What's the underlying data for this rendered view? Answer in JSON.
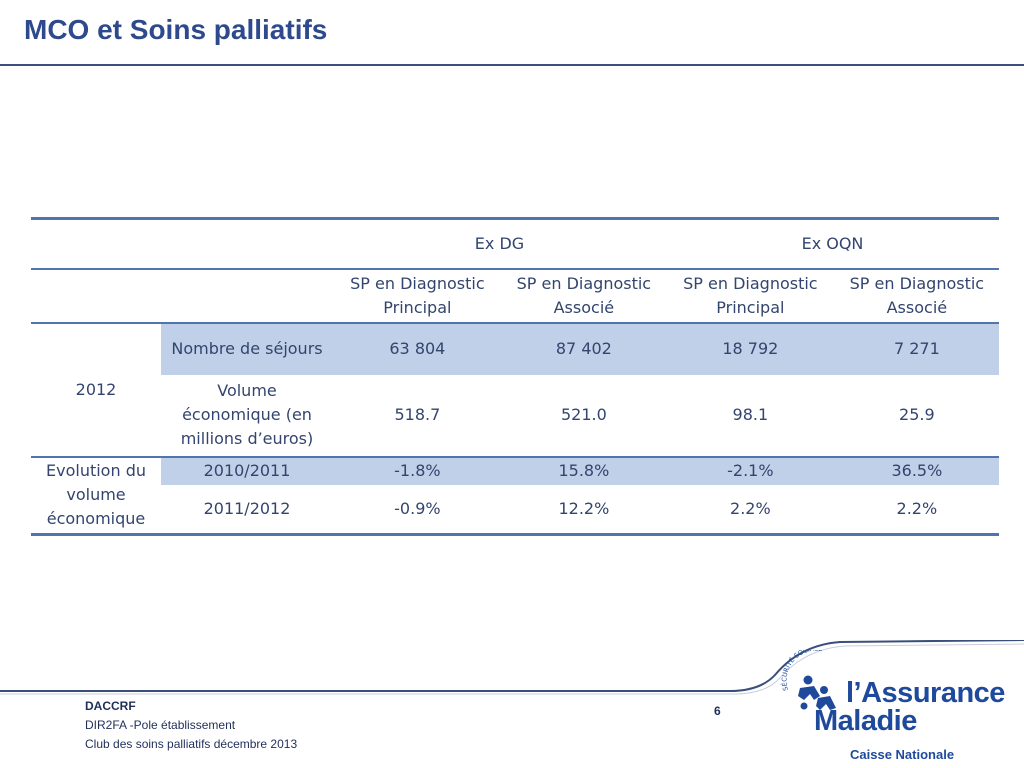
{
  "slide": {
    "title": "MCO et Soins palliatifs",
    "page_number": "6"
  },
  "table": {
    "groups": [
      "Ex DG",
      "Ex OQN"
    ],
    "subheaders": [
      "SP en Diagnostic Principal",
      "SP en Diagnostic Associé",
      "SP en Diagnostic Principal",
      "SP en Diagnostic Associé"
    ],
    "year_label": "2012",
    "evolution_label": "Evolution du volume économique",
    "rows": [
      {
        "label": "Nombre de séjours",
        "values": [
          "63 804",
          "87 402",
          "18 792",
          "7 271"
        ]
      },
      {
        "label": "Volume économique (en millions d’euros)",
        "values": [
          "518.7",
          "521.0",
          "98.1",
          "25.9"
        ]
      },
      {
        "label": "2010/2011",
        "values": [
          "-1.8%",
          "15.8%",
          "-2.1%",
          "36.5%"
        ]
      },
      {
        "label": "2011/2012",
        "values": [
          "-0.9%",
          "12.2%",
          "2.2%",
          "2.2%"
        ]
      }
    ],
    "accent_color": "#4f75ae",
    "shade_color": "#bfd0e8"
  },
  "footer": {
    "org": "DACCRF",
    "line2": "DIR2FA -Pole établissement",
    "line3": "Club des soins palliatifs décembre 2013"
  },
  "logo": {
    "arc_text": "SÉCURITÉ SOCIALE",
    "name_line1": "l’Assurance",
    "name_line2": "Maladie",
    "subtitle": "Caisse Nationale",
    "icon": "people-figures-icon"
  }
}
